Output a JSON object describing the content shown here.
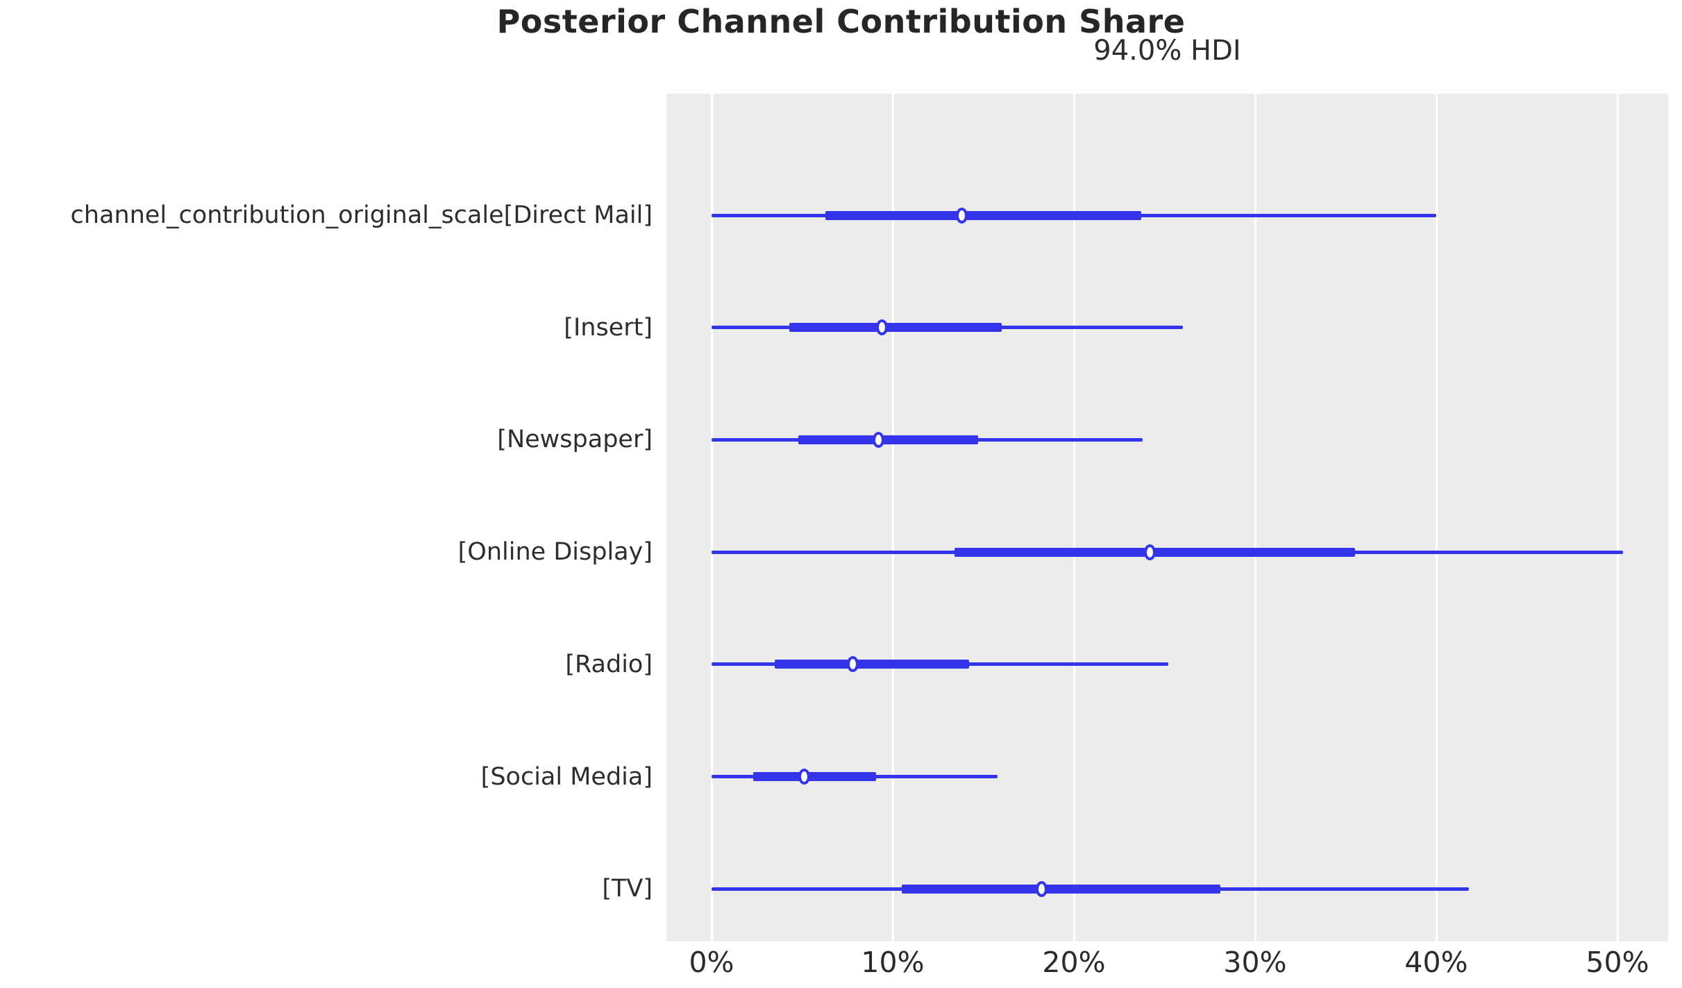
{
  "chart": {
    "title": "Posterior Channel Contribution Share",
    "subtitle": "94.0% HDI"
  },
  "chart_data": {
    "type": "forest_plot",
    "title": "Posterior Channel Contribution Share",
    "subtitle": "94.0% HDI",
    "hdi_probability": 94.0,
    "x_unit": "percent",
    "xlim": [
      -2.5,
      52.8
    ],
    "x_ticks": [
      0,
      10,
      20,
      30,
      40,
      50
    ],
    "x_tick_labels": [
      "0%",
      "10%",
      "20%",
      "30%",
      "40%",
      "50%"
    ],
    "grid": "vertical-white-on-gray",
    "legend": "none",
    "rows": [
      {
        "label": "channel_contribution_original_scale[Direct Mail]",
        "hdi_low": 0.0,
        "hdi_high": 40.0,
        "quartile_low": 6.3,
        "quartile_high": 23.7,
        "median": 13.8
      },
      {
        "label": "[Insert]",
        "hdi_low": 0.0,
        "hdi_high": 26.0,
        "quartile_low": 4.3,
        "quartile_high": 16.0,
        "median": 9.4
      },
      {
        "label": "[Newspaper]",
        "hdi_low": 0.0,
        "hdi_high": 23.8,
        "quartile_low": 4.8,
        "quartile_high": 14.7,
        "median": 9.2
      },
      {
        "label": "[Online Display]",
        "hdi_low": 0.0,
        "hdi_high": 50.3,
        "quartile_low": 13.4,
        "quartile_high": 35.5,
        "median": 24.2
      },
      {
        "label": "[Radio]",
        "hdi_low": 0.0,
        "hdi_high": 25.2,
        "quartile_low": 3.5,
        "quartile_high": 14.2,
        "median": 7.8
      },
      {
        "label": "[Social Media]",
        "hdi_low": 0.0,
        "hdi_high": 15.8,
        "quartile_low": 2.3,
        "quartile_high": 9.1,
        "median": 5.1
      },
      {
        "label": "[TV]",
        "hdi_low": 0.0,
        "hdi_high": 41.8,
        "quartile_low": 10.5,
        "quartile_high": 28.1,
        "median": 18.2
      }
    ],
    "colors": {
      "line": "#3434ec",
      "marker_fill": "#ffffff",
      "plot_background": "#ececec",
      "gridline": "#ffffff",
      "text": "#2d2d2d"
    }
  }
}
